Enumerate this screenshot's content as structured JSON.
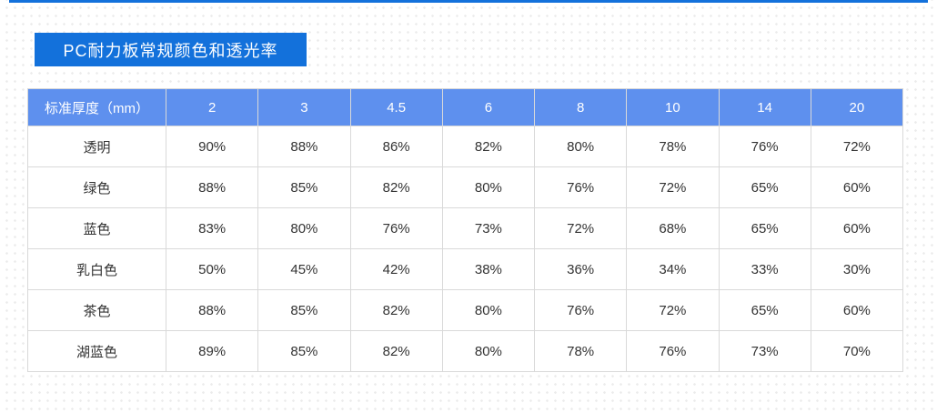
{
  "page": {
    "title": "PC耐力板常规颜色和透光率"
  },
  "colors": {
    "accent_blue": "#1371DB",
    "table_header_blue": "#5E90EE",
    "border_gray": "#D9D9D9",
    "body_text": "#333333"
  },
  "table": {
    "header": [
      "标准厚度（mm）",
      "2",
      "3",
      "4.5",
      "6",
      "8",
      "10",
      "14",
      "20"
    ],
    "rows": [
      {
        "label": "透明",
        "values": [
          "90%",
          "88%",
          "86%",
          "82%",
          "80%",
          "78%",
          "76%",
          "72%"
        ]
      },
      {
        "label": "绿色",
        "values": [
          "88%",
          "85%",
          "82%",
          "80%",
          "76%",
          "72%",
          "65%",
          "60%"
        ]
      },
      {
        "label": "蓝色",
        "values": [
          "83%",
          "80%",
          "76%",
          "73%",
          "72%",
          "68%",
          "65%",
          "60%"
        ]
      },
      {
        "label": "乳白色",
        "values": [
          "50%",
          "45%",
          "42%",
          "38%",
          "36%",
          "34%",
          "33%",
          "30%"
        ]
      },
      {
        "label": "茶色",
        "values": [
          "88%",
          "85%",
          "82%",
          "80%",
          "76%",
          "72%",
          "65%",
          "60%"
        ]
      },
      {
        "label": "湖蓝色",
        "values": [
          "89%",
          "85%",
          "82%",
          "80%",
          "78%",
          "76%",
          "73%",
          "70%"
        ]
      }
    ]
  }
}
